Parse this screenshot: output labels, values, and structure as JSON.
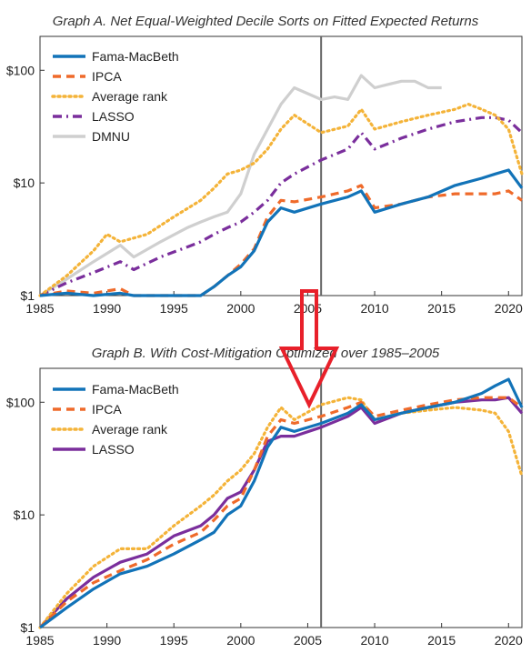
{
  "colors": {
    "fama": "#1273b8",
    "ipca": "#ef6a2a",
    "avg": "#f4b338",
    "lasso": "#7a2e9c",
    "dmnu": "#cfcfcf",
    "divider": "#666666",
    "arrow": "#e8202a"
  },
  "chart_data": [
    {
      "type": "line",
      "title": "Graph A. Net Equal-Weighted Decile Sorts on Fitted Expected Returns",
      "xlabel": "",
      "ylabel": "",
      "y_scale": "log",
      "ylim": [
        1,
        200
      ],
      "xlim": [
        1985,
        2021
      ],
      "x_ticks": [
        1985,
        1990,
        1995,
        2000,
        2005,
        2010,
        2015,
        2020
      ],
      "y_ticks": [
        {
          "value": 1,
          "label": "$1"
        },
        {
          "value": 10,
          "label": "$10"
        },
        {
          "value": 100,
          "label": "$100"
        }
      ],
      "vertical_line_x": 2006,
      "legend_position": "top-left",
      "series": [
        {
          "name": "Fama-MacBeth",
          "color_key": "fama",
          "dash": "solid",
          "x": [
            1985,
            1987,
            1989,
            1991,
            1992,
            1994,
            1996,
            1997,
            1998,
            1999,
            2000,
            2001,
            2002,
            2003,
            2004,
            2006,
            2008,
            2009,
            2010,
            2012,
            2014,
            2016,
            2018,
            2019,
            2020,
            2021
          ],
          "y": [
            1,
            1.05,
            1.0,
            1.05,
            0.85,
            0.82,
            0.8,
            1.0,
            1.2,
            1.5,
            1.8,
            2.5,
            4.5,
            6,
            5.5,
            6.5,
            7.5,
            8.5,
            5.5,
            6.5,
            7.5,
            9.5,
            11,
            12,
            13,
            9
          ]
        },
        {
          "name": "IPCA",
          "color_key": "ipca",
          "dash": "dash",
          "x": [
            1985,
            1987,
            1989,
            1991,
            1992,
            1994,
            1996,
            1997,
            1998,
            1999,
            2000,
            2001,
            2002,
            2003,
            2004,
            2006,
            2008,
            2009,
            2010,
            2012,
            2014,
            2016,
            2018,
            2019,
            2020,
            2021
          ],
          "y": [
            1,
            1.1,
            1.05,
            1.15,
            0.9,
            0.8,
            0.75,
            1.0,
            1.2,
            1.5,
            1.9,
            2.6,
            5,
            7,
            6.8,
            7.5,
            8.5,
            9.5,
            6,
            6.5,
            7.5,
            8,
            8,
            8,
            8.5,
            7
          ]
        },
        {
          "name": "Average rank",
          "color_key": "avg",
          "dash": "dot",
          "x": [
            1985,
            1987,
            1989,
            1990,
            1991,
            1993,
            1995,
            1997,
            1998,
            1999,
            2000,
            2001,
            2002,
            2003,
            2004,
            2006,
            2008,
            2009,
            2010,
            2012,
            2014,
            2016,
            2017,
            2018,
            2019,
            2020,
            2021
          ],
          "y": [
            1,
            1.5,
            2.5,
            3.5,
            3,
            3.5,
            5,
            7,
            9,
            12,
            13,
            15,
            20,
            30,
            40,
            28,
            32,
            45,
            30,
            35,
            40,
            45,
            50,
            45,
            40,
            30,
            12
          ]
        },
        {
          "name": "LASSO",
          "color_key": "lasso",
          "dash": "dashdot",
          "x": [
            1985,
            1987,
            1989,
            1991,
            1992,
            1994,
            1996,
            1997,
            1998,
            1999,
            2000,
            2001,
            2002,
            2003,
            2004,
            2006,
            2008,
            2009,
            2010,
            2012,
            2014,
            2016,
            2018,
            2019,
            2020,
            2021
          ],
          "y": [
            1,
            1.3,
            1.6,
            2,
            1.7,
            2.2,
            2.7,
            3,
            3.5,
            4,
            4.5,
            5.5,
            7,
            10,
            12,
            16,
            20,
            28,
            20,
            25,
            30,
            35,
            38,
            38,
            36,
            28
          ]
        },
        {
          "name": "DMNU",
          "color_key": "dmnu",
          "dash": "solid",
          "x": [
            1985,
            1987,
            1989,
            1991,
            1992,
            1994,
            1996,
            1997,
            1998,
            1999,
            2000,
            2001,
            2002,
            2003,
            2004,
            2006,
            2007,
            2008,
            2009,
            2010,
            2011,
            2012,
            2013,
            2014,
            2015
          ],
          "y": [
            1,
            1.4,
            2,
            2.8,
            2.2,
            3,
            4,
            4.5,
            5,
            5.5,
            8,
            18,
            30,
            50,
            70,
            55,
            58,
            55,
            90,
            70,
            75,
            80,
            80,
            70,
            70
          ]
        }
      ]
    },
    {
      "type": "line",
      "title": "Graph B. With Cost-Mitigation Optimized over 1985–2005",
      "xlabel": "",
      "ylabel": "",
      "y_scale": "log",
      "ylim": [
        1,
        200
      ],
      "xlim": [
        1985,
        2021
      ],
      "x_ticks": [
        1985,
        1990,
        1995,
        2000,
        2005,
        2010,
        2015,
        2020
      ],
      "y_ticks": [
        {
          "value": 1,
          "label": "$1"
        },
        {
          "value": 10,
          "label": "$10"
        },
        {
          "value": 100,
          "label": "$100"
        }
      ],
      "vertical_line_x": 2006,
      "legend_position": "top-left",
      "series": [
        {
          "name": "Fama-MacBeth",
          "color_key": "fama",
          "dash": "solid",
          "x": [
            1985,
            1987,
            1989,
            1991,
            1993,
            1995,
            1997,
            1998,
            1999,
            2000,
            2001,
            2002,
            2003,
            2004,
            2006,
            2008,
            2009,
            2010,
            2012,
            2014,
            2016,
            2018,
            2019,
            2020,
            2021
          ],
          "y": [
            1,
            1.5,
            2.2,
            3,
            3.5,
            4.5,
            6,
            7,
            10,
            12,
            20,
            40,
            60,
            55,
            65,
            80,
            95,
            70,
            80,
            90,
            100,
            120,
            140,
            160,
            90
          ]
        },
        {
          "name": "IPCA",
          "color_key": "ipca",
          "dash": "dash",
          "x": [
            1985,
            1987,
            1989,
            1991,
            1993,
            1995,
            1997,
            1998,
            1999,
            2000,
            2001,
            2002,
            2003,
            2004,
            2006,
            2008,
            2009,
            2010,
            2012,
            2014,
            2016,
            2018,
            2019,
            2020,
            2021
          ],
          "y": [
            1,
            1.7,
            2.5,
            3.2,
            4,
            5.5,
            7,
            9,
            12,
            14,
            25,
            50,
            70,
            65,
            75,
            90,
            100,
            75,
            85,
            95,
            105,
            110,
            110,
            110,
            90
          ]
        },
        {
          "name": "Average rank",
          "color_key": "avg",
          "dash": "dot",
          "x": [
            1985,
            1987,
            1989,
            1991,
            1993,
            1995,
            1997,
            1998,
            1999,
            2000,
            2001,
            2002,
            2003,
            2004,
            2006,
            2008,
            2009,
            2010,
            2012,
            2014,
            2016,
            2018,
            2019,
            2020,
            2021
          ],
          "y": [
            1,
            2,
            3.5,
            5,
            5,
            8,
            12,
            15,
            20,
            25,
            35,
            60,
            90,
            70,
            95,
            110,
            105,
            70,
            80,
            85,
            90,
            85,
            80,
            55,
            22
          ]
        },
        {
          "name": "LASSO",
          "color_key": "lasso",
          "dash": "solid",
          "x": [
            1985,
            1987,
            1989,
            1991,
            1993,
            1995,
            1997,
            1998,
            1999,
            2000,
            2001,
            2002,
            2003,
            2004,
            2006,
            2008,
            2009,
            2010,
            2012,
            2014,
            2016,
            2018,
            2019,
            2020,
            2021
          ],
          "y": [
            1,
            1.8,
            2.8,
            3.8,
            4.5,
            6.5,
            8,
            10,
            14,
            16,
            25,
            45,
            50,
            50,
            60,
            75,
            90,
            65,
            80,
            90,
            100,
            105,
            105,
            110,
            80
          ]
        }
      ]
    }
  ]
}
